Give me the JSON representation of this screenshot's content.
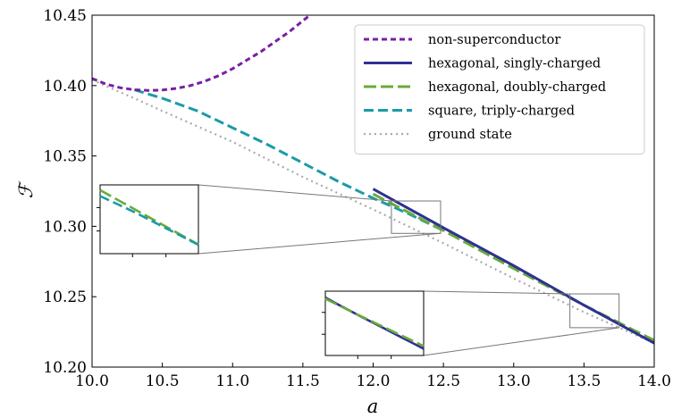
{
  "chart_data": {
    "type": "line",
    "xlabel": "a",
    "ylabel": "ℱ",
    "xlim": [
      10.0,
      14.0
    ],
    "ylim": [
      10.2,
      10.45
    ],
    "xticks": [
      "10.0",
      "10.5",
      "11.0",
      "11.5",
      "12.0",
      "12.5",
      "13.0",
      "13.5",
      "14.0"
    ],
    "yticks": [
      "10.20",
      "10.25",
      "10.30",
      "10.35",
      "10.40",
      "10.45"
    ],
    "legend_position": "top-right",
    "grid": false,
    "series": [
      {
        "name": "non-superconductor",
        "color": "#7b1fa2",
        "style": "short-dash",
        "x": [
          10.0,
          10.1,
          10.2,
          10.3,
          10.4,
          10.5,
          10.6,
          10.7,
          10.8,
          10.9,
          11.0,
          11.1,
          11.2,
          11.3,
          11.4,
          11.5,
          11.55
        ],
        "y": [
          10.405,
          10.401,
          10.3985,
          10.397,
          10.3965,
          10.3968,
          10.398,
          10.4,
          10.403,
          10.407,
          10.412,
          10.418,
          10.424,
          10.431,
          10.438,
          10.446,
          10.45
        ]
      },
      {
        "name": "hexagonal, singly-charged",
        "color": "#2e3192",
        "style": "solid",
        "x": [
          12.0,
          12.5,
          13.0,
          13.5,
          14.0
        ],
        "y": [
          10.3265,
          10.299,
          10.272,
          10.244,
          10.217
        ]
      },
      {
        "name": "hexagonal, doubly-charged",
        "color": "#6aaa3a",
        "style": "long-dash",
        "x": [
          12.0,
          12.5,
          13.0,
          13.5,
          14.0
        ],
        "y": [
          10.323,
          10.297,
          10.27,
          10.244,
          10.219
        ]
      },
      {
        "name": "square, triply-charged",
        "color": "#1a9ba8",
        "style": "dash",
        "x": [
          10.3,
          10.5,
          10.75,
          11.0,
          11.25,
          11.5,
          11.75,
          12.0,
          12.25,
          12.5
        ],
        "y": [
          10.397,
          10.391,
          10.382,
          10.37,
          10.358,
          10.345,
          10.332,
          10.32,
          10.309,
          10.297
        ]
      },
      {
        "name": "ground state",
        "color": "#aaaaaa",
        "style": "dotted",
        "x": [
          10.0,
          10.3,
          10.5,
          10.75,
          11.0,
          11.5,
          12.0,
          12.5,
          13.0,
          13.5,
          14.0
        ],
        "y": [
          10.404,
          10.391,
          10.382,
          10.371,
          10.36,
          10.335,
          10.312,
          10.288,
          10.263,
          10.239,
          10.217
        ]
      }
    ],
    "insets": [
      {
        "source_x": [
          12.13,
          12.48
        ],
        "source_y": [
          10.295,
          10.318
        ],
        "series_shown": [
          "hexagonal, doubly-charged",
          "square, triply-charged"
        ]
      },
      {
        "source_x": [
          13.4,
          13.75
        ],
        "source_y": [
          10.228,
          10.252
        ],
        "series_shown": [
          "hexagonal, singly-charged",
          "hexagonal, doubly-charged"
        ]
      }
    ]
  }
}
